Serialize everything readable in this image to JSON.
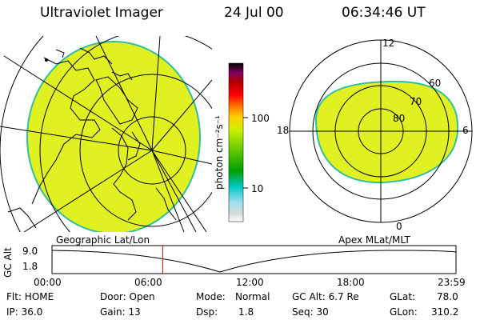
{
  "header": {
    "title": "Ultraviolet Imager",
    "date": "24 Jul 00",
    "time": "06:34:46 UT"
  },
  "colorbar": {
    "label": "photon cm⁻²s⁻¹",
    "ticks": [
      "100",
      "10"
    ],
    "colors": [
      "#ffffff",
      "#c8c8c8",
      "#a0e0ff",
      "#00c8c8",
      "#00a000",
      "#40c000",
      "#a0e000",
      "#e0f000",
      "#ffc000",
      "#ff6000",
      "#ff0000",
      "#c00000",
      "#800080",
      "#000000"
    ]
  },
  "geo_panel": {
    "caption": "Geographic Lat/Lon",
    "fill_color": "#e0f020",
    "edge_color": "#30c0a0"
  },
  "polar_panel": {
    "caption": "Apex MLat/MLT",
    "mlt_labels": {
      "top": "12",
      "left": "18",
      "right": "6",
      "bottom": "0"
    },
    "lat_labels": [
      "60",
      "70",
      "80"
    ]
  },
  "timeline": {
    "ylabel": "GC Alt",
    "ticks_y": [
      "9.0",
      "1.8"
    ],
    "ticks_x": [
      "00:00",
      "06:00",
      "12:00",
      "18:00",
      "23:59"
    ],
    "marker_color": "#ff0000",
    "marker_time_hours": 6.58
  },
  "info": {
    "col1": [
      "Flt: HOME",
      "IP: 36.0"
    ],
    "col2": [
      "Door: Open",
      "Gain: 13"
    ],
    "col3_a": [
      "Mode:",
      "Dsp:"
    ],
    "col3_b": [
      "Normal",
      "1.8"
    ],
    "col4": [
      "GC Alt: 6.7 Re",
      "Seq: 30"
    ],
    "col5_a": [
      "GLat:",
      "GLon:"
    ],
    "col5_b": [
      "78.0",
      "310.2"
    ]
  }
}
